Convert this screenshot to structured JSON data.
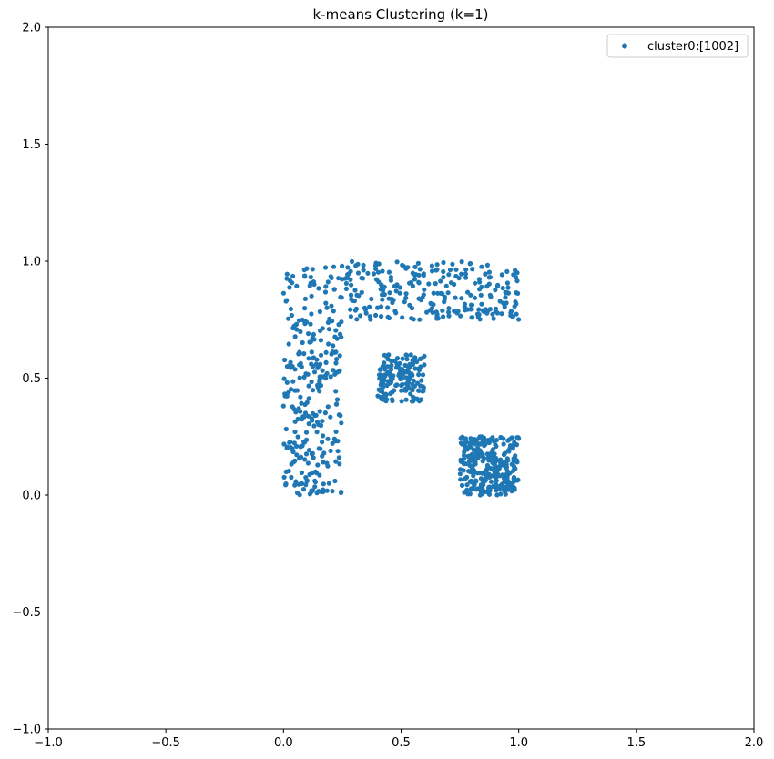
{
  "chart_data": {
    "type": "scatter",
    "title": "k-means Clustering (k=1)",
    "xlabel": "",
    "ylabel": "",
    "xlim": [
      -1.0,
      2.0
    ],
    "ylim": [
      -1.0,
      2.0
    ],
    "xticks": [
      "−1.0",
      "−0.5",
      "0.0",
      "0.5",
      "1.0",
      "1.5",
      "2.0"
    ],
    "yticks": [
      "−1.0",
      "−0.5",
      "0.0",
      "0.5",
      "1.0",
      "1.5",
      "2.0"
    ],
    "xtick_values": [
      -1.0,
      -0.5,
      0.0,
      0.5,
      1.0,
      1.5,
      2.0
    ],
    "ytick_values": [
      -1.0,
      -0.5,
      0.0,
      0.5,
      1.0,
      1.5,
      2.0
    ],
    "grid": false,
    "legend": {
      "placement": "top-right",
      "entries": [
        "cluster0:[1002]"
      ]
    },
    "series": [
      {
        "name": "cluster0:[1002]",
        "color": "#1f77b4",
        "count": 1002,
        "regions": [
          {
            "shape": "L-top-bar",
            "x": [
              0.0,
              1.0
            ],
            "y": [
              0.75,
              1.0
            ],
            "approx_points": 300
          },
          {
            "shape": "L-vertical-bar",
            "x": [
              0.0,
              0.25
            ],
            "y": [
              0.0,
              0.75
            ],
            "approx_points": 250
          },
          {
            "shape": "square",
            "x": [
              0.4,
              0.6
            ],
            "y": [
              0.4,
              0.6
            ],
            "approx_points": 150
          },
          {
            "shape": "square",
            "x": [
              0.75,
              1.0
            ],
            "y": [
              0.0,
              0.25
            ],
            "approx_points": 302
          }
        ]
      }
    ]
  }
}
